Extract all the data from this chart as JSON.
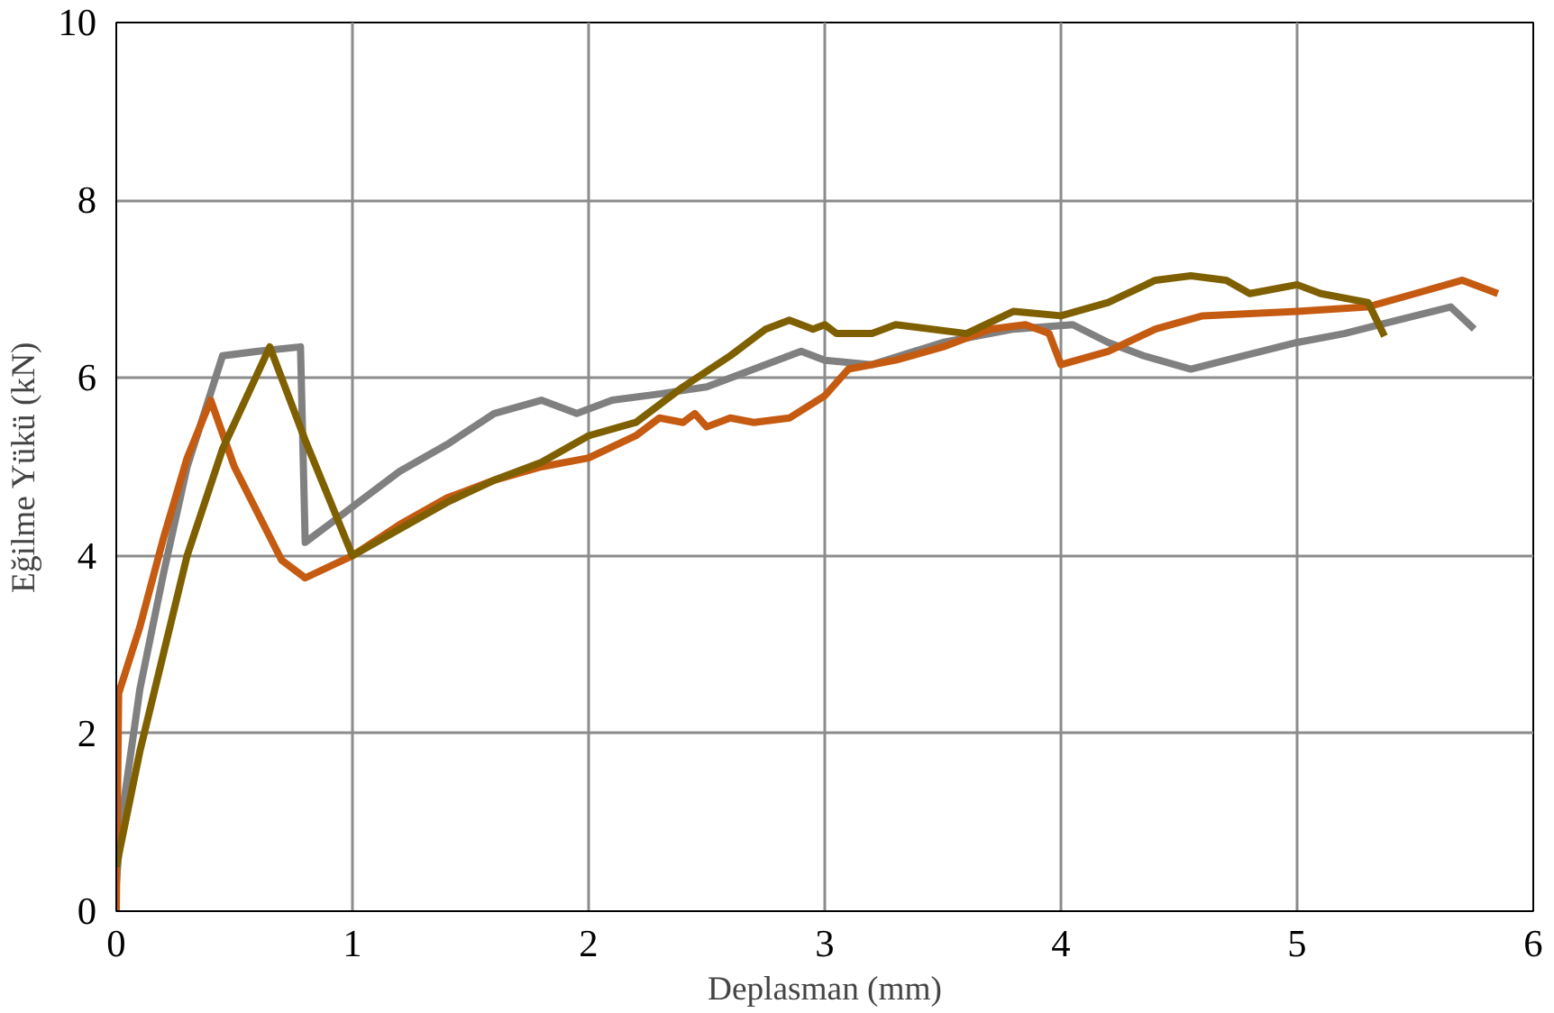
{
  "chart_data": {
    "type": "line",
    "xlabel": "Deplasman (mm)",
    "ylabel": "Eğilme Yükü (kN)",
    "xlim": [
      0,
      6
    ],
    "xticks": [
      0,
      1,
      2,
      3,
      4,
      5,
      6
    ],
    "ylim": [
      0,
      10
    ],
    "yticks": [
      0,
      2,
      4,
      6,
      8,
      10
    ],
    "grid": true,
    "line_style": "solid",
    "series": [
      {
        "color": "#808080",
        "x": [
          0,
          0.02,
          0.1,
          0.2,
          0.3,
          0.45,
          0.6,
          0.78,
          0.8,
          0.9,
          1.0,
          1.2,
          1.4,
          1.6,
          1.8,
          1.95,
          2.1,
          2.3,
          2.5,
          2.7,
          2.9,
          3.0,
          3.2,
          3.5,
          3.8,
          4.05,
          4.2,
          4.35,
          4.55,
          4.7,
          5.0,
          5.2,
          5.5,
          5.65,
          5.75
        ],
        "values": [
          0.3,
          1.0,
          2.5,
          3.8,
          5.0,
          6.25,
          6.3,
          6.35,
          4.15,
          4.35,
          4.55,
          4.95,
          5.25,
          5.6,
          5.75,
          5.6,
          5.75,
          5.82,
          5.9,
          6.1,
          6.3,
          6.2,
          6.15,
          6.4,
          6.55,
          6.6,
          6.4,
          6.25,
          6.1,
          6.2,
          6.4,
          6.5,
          6.7,
          6.8,
          6.55
        ]
      },
      {
        "color": "#c55a11",
        "x": [
          0,
          0.01,
          0.1,
          0.2,
          0.3,
          0.4,
          0.5,
          0.7,
          0.8,
          1.0,
          1.2,
          1.4,
          1.6,
          1.8,
          2.0,
          2.2,
          2.3,
          2.4,
          2.45,
          2.5,
          2.6,
          2.7,
          2.85,
          3.0,
          3.1,
          3.3,
          3.5,
          3.7,
          3.85,
          3.95,
          4.0,
          4.2,
          4.4,
          4.6,
          5.0,
          5.3,
          5.5,
          5.7,
          5.85
        ],
        "values": [
          0.0,
          2.45,
          3.2,
          4.2,
          5.1,
          5.75,
          5.0,
          3.95,
          3.75,
          4.0,
          4.35,
          4.65,
          4.85,
          5.0,
          5.1,
          5.35,
          5.55,
          5.5,
          5.6,
          5.45,
          5.55,
          5.5,
          5.55,
          5.8,
          6.1,
          6.2,
          6.35,
          6.55,
          6.6,
          6.5,
          6.15,
          6.3,
          6.55,
          6.7,
          6.75,
          6.8,
          6.95,
          7.1,
          6.95
        ]
      },
      {
        "color": "#7f6000",
        "x": [
          0,
          0.1,
          0.2,
          0.3,
          0.45,
          0.65,
          0.8,
          1.0,
          1.2,
          1.4,
          1.6,
          1.8,
          2.0,
          2.2,
          2.4,
          2.6,
          2.75,
          2.85,
          2.95,
          3.0,
          3.05,
          3.2,
          3.3,
          3.6,
          3.8,
          4.0,
          4.2,
          4.4,
          4.55,
          4.7,
          4.8,
          5.0,
          5.1,
          5.3,
          5.37
        ],
        "values": [
          0.5,
          1.8,
          2.9,
          4.0,
          5.2,
          6.35,
          5.3,
          4.0,
          4.3,
          4.6,
          4.85,
          5.05,
          5.35,
          5.5,
          5.9,
          6.25,
          6.55,
          6.65,
          6.55,
          6.6,
          6.5,
          6.5,
          6.6,
          6.5,
          6.75,
          6.7,
          6.85,
          7.1,
          7.15,
          7.1,
          6.95,
          7.05,
          6.95,
          6.85,
          6.47
        ]
      }
    ]
  }
}
